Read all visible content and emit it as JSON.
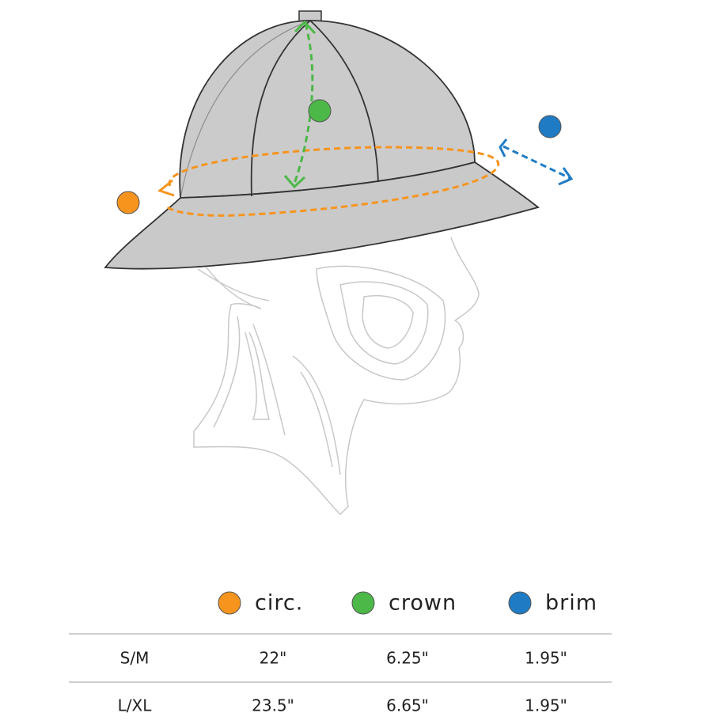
{
  "legend": [
    {
      "label": "circ.",
      "color": "#f7941d"
    },
    {
      "label": "crown",
      "color": "#4cb848"
    },
    {
      "label": "brim",
      "color": "#1f7cc4"
    }
  ],
  "table": {
    "rows": [
      [
        "S/M",
        "22\"",
        "6.25\"",
        "1.95\""
      ],
      [
        "L/XL",
        "23.5\"",
        "6.65\"",
        "1.95\""
      ]
    ]
  }
}
